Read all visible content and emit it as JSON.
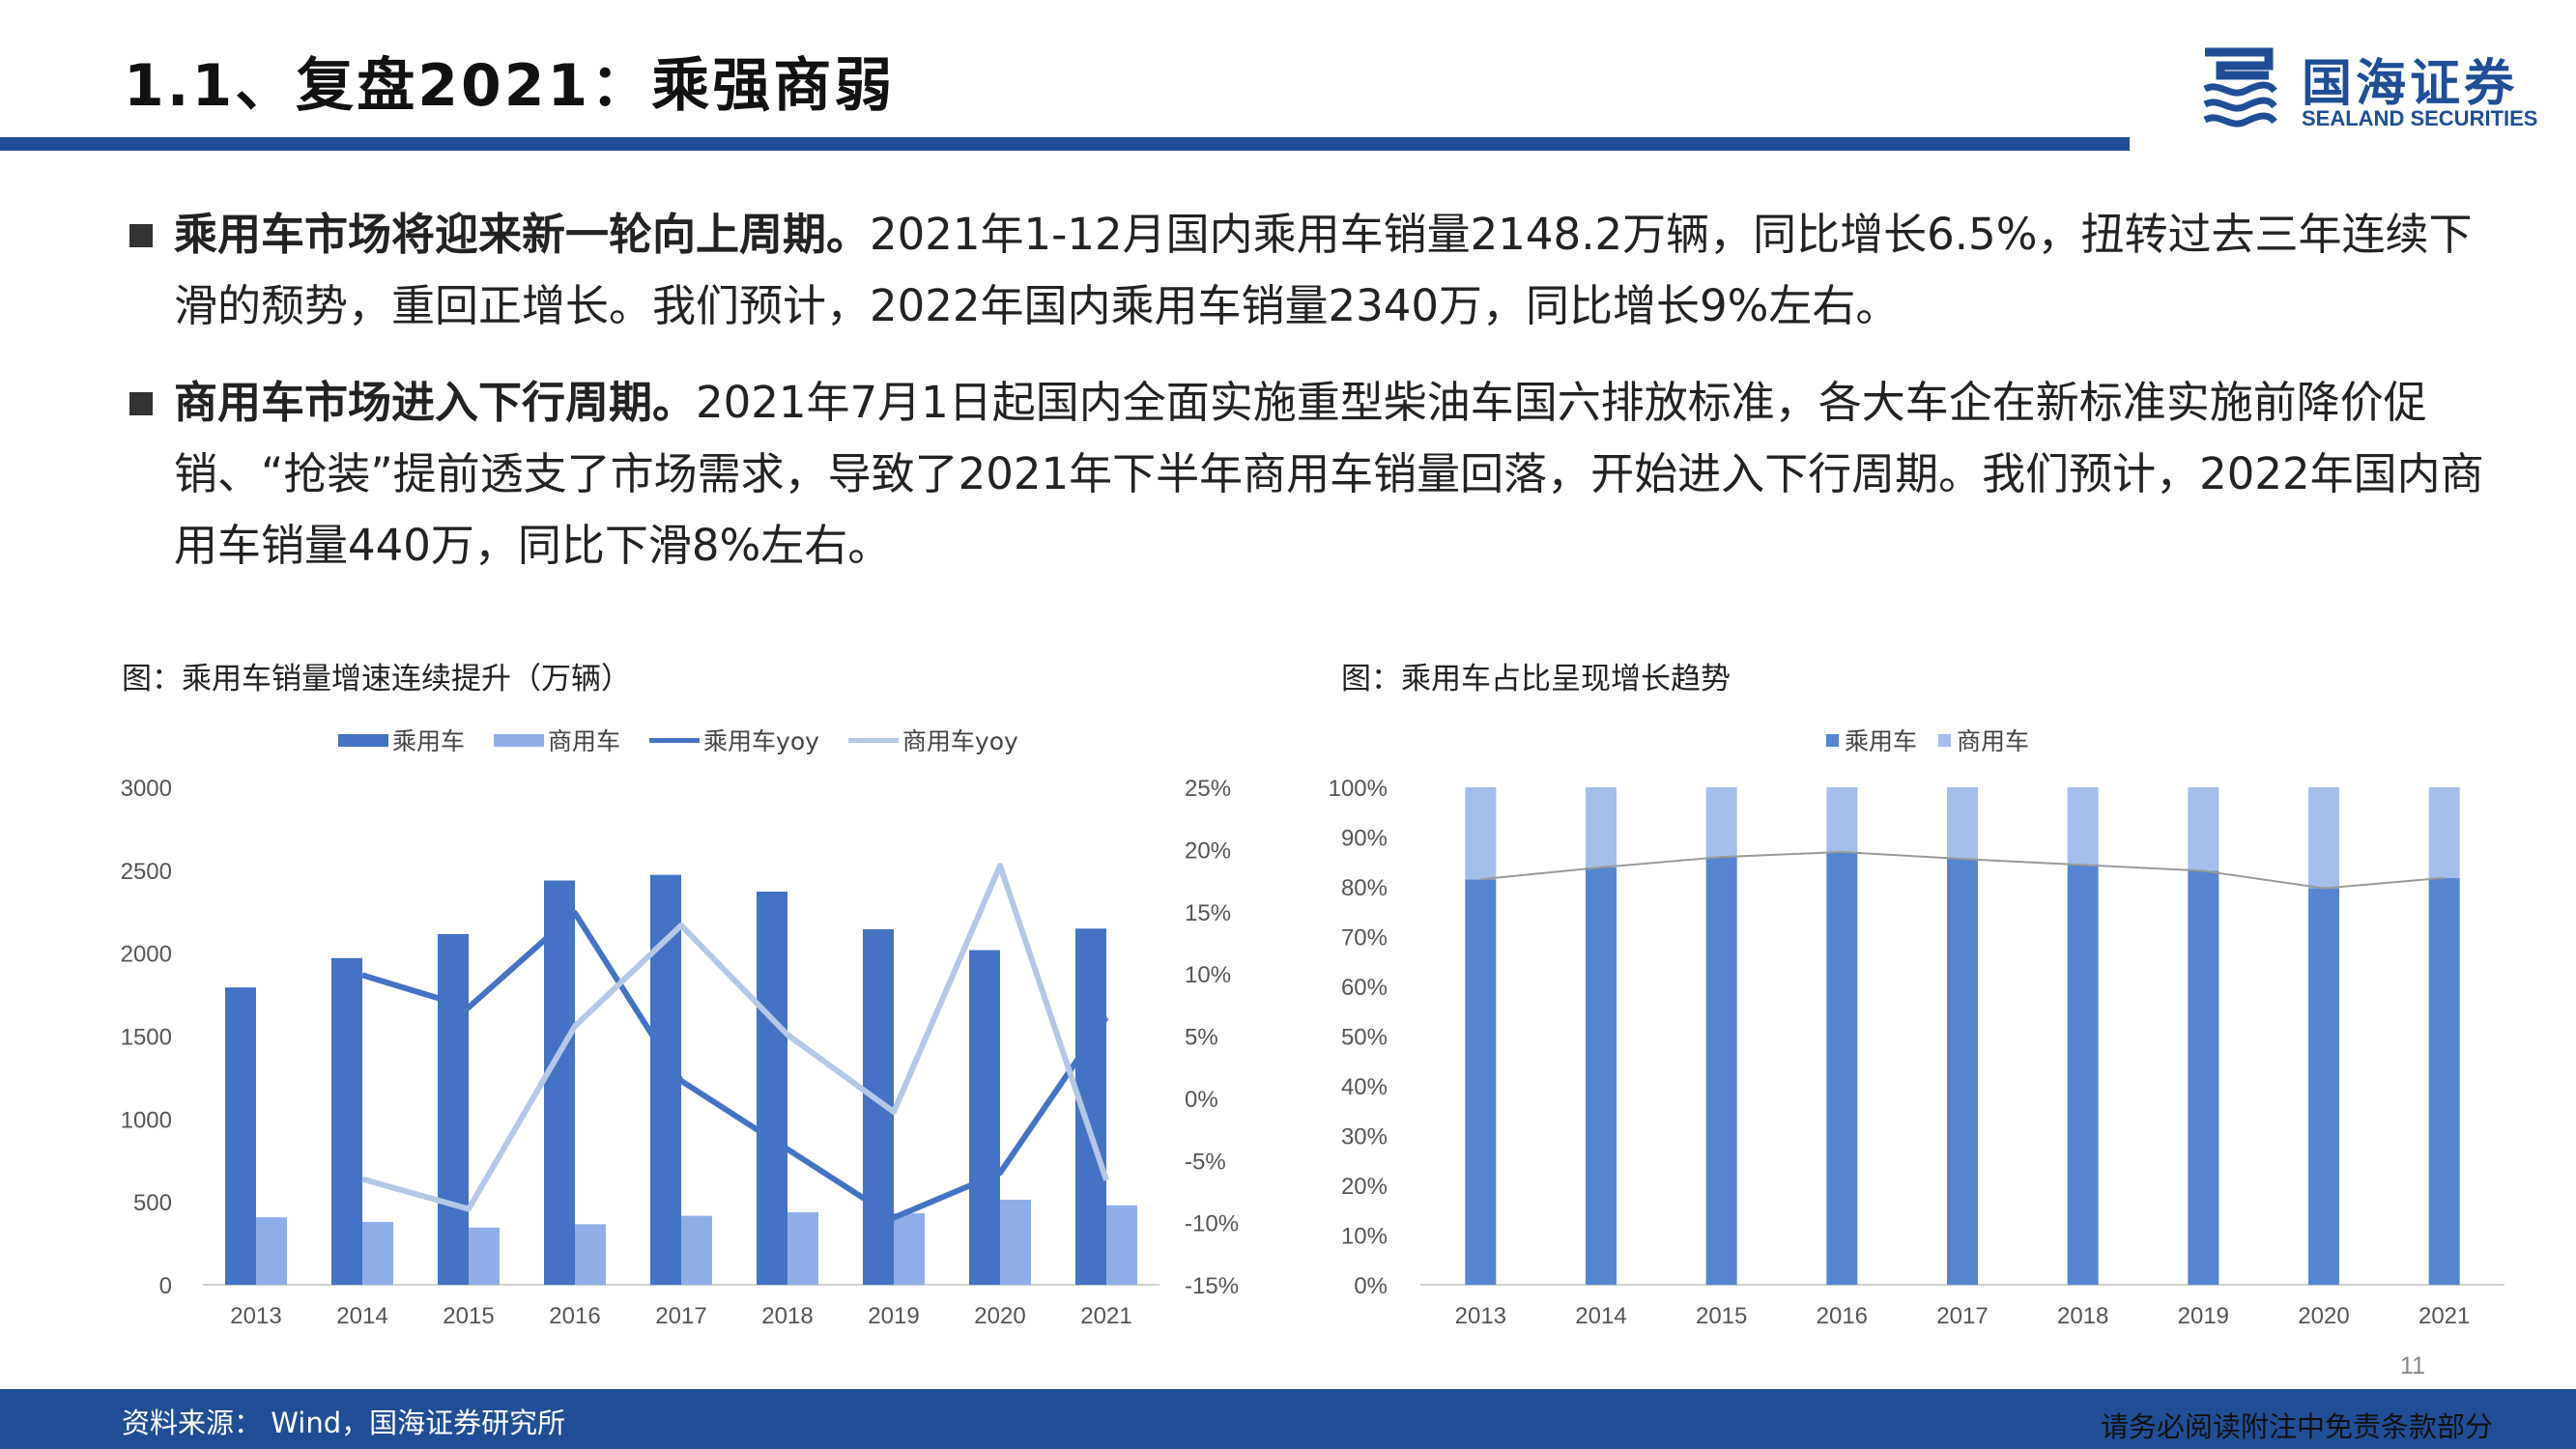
{
  "header": {
    "title": "1.1、复盘2021：乘强商弱",
    "logo_cn": "国海证券",
    "logo_en": "SEALAND SECURITIES"
  },
  "bullets": [
    {
      "bold": "乘用车市场将迎来新一轮向上周期。",
      "text": "2021年1-12月国内乘用车销量2148.2万辆，同比增长6.5%，扭转过去三年连续下滑的颓势，重回正增长。我们预计，2022年国内乘用车销量2340万，同比增长9%左右。"
    },
    {
      "bold": "商用车市场进入下行周期。",
      "text": "2021年7月1日起国内全面实施重型柴油车国六排放标准，各大车企在新标准实施前降价促销、“抢装”提前透支了市场需求，导致了2021年下半年商用车销量回落，开始进入下行周期。我们预计，2022年国内商用车销量440万，同比下滑8%左右。"
    }
  ],
  "chart_left": {
    "caption": "图：乘用车销量增速连续提升（万辆）",
    "legend": [
      "乘用车",
      "商用车",
      "乘用车yoy",
      "商用车yoy"
    ]
  },
  "chart_right": {
    "caption": "图：乘用车占比呈现增长趋势",
    "legend": [
      "乘用车",
      "商用车"
    ]
  },
  "chart_data": [
    {
      "type": "bar",
      "title": "图：乘用车销量增速连续提升（万辆）",
      "categories": [
        "2013",
        "2014",
        "2015",
        "2016",
        "2017",
        "2018",
        "2019",
        "2020",
        "2021"
      ],
      "series": [
        {
          "name": "乘用车",
          "kind": "bar",
          "axis": "left",
          "values": [
            1793,
            1970,
            2115,
            2438,
            2472,
            2371,
            2144,
            2018,
            2148
          ]
        },
        {
          "name": "商用车",
          "kind": "bar",
          "axis": "left",
          "values": [
            407,
            379,
            345,
            365,
            416,
            437,
            432,
            513,
            479
          ]
        },
        {
          "name": "乘用车yoy",
          "kind": "line",
          "axis": "right",
          "values": [
            null,
            9.9,
            7.3,
            14.9,
            1.4,
            -4.1,
            -9.6,
            -6.0,
            6.5
          ]
        },
        {
          "name": "商用车yoy",
          "kind": "line",
          "axis": "right",
          "values": [
            null,
            -6.5,
            -8.9,
            5.8,
            13.9,
            5.1,
            -1.1,
            18.7,
            -6.6
          ]
        }
      ],
      "ylim": [
        0,
        3000
      ],
      "yticks": [
        "3000",
        "2500",
        "2000",
        "1500",
        "1000",
        "500",
        "0"
      ],
      "y2lim": [
        -15,
        25
      ],
      "y2ticks": [
        "25%",
        "20%",
        "15%",
        "10%",
        "5%",
        "0%",
        "-5%",
        "-10%",
        "-15%"
      ],
      "colors": {
        "乘用车": "#4472c4",
        "商用车": "#8faee8",
        "乘用车yoy": "#4472c4",
        "商用车yoy": "#b4c7e7"
      },
      "legend_position": "top",
      "grid": false
    },
    {
      "type": "bar",
      "stacked": true,
      "title": "图：乘用车占比呈现增长趋势",
      "categories": [
        "2013",
        "2014",
        "2015",
        "2016",
        "2017",
        "2018",
        "2019",
        "2020",
        "2021"
      ],
      "series": [
        {
          "name": "乘用车",
          "values": [
            81.5,
            83.9,
            86.0,
            87.0,
            85.6,
            84.4,
            83.2,
            79.7,
            81.8
          ]
        },
        {
          "name": "商用车",
          "values": [
            18.5,
            16.1,
            14.0,
            13.0,
            14.4,
            15.6,
            16.8,
            20.3,
            18.2
          ]
        }
      ],
      "ylim": [
        0,
        100
      ],
      "yticks": [
        "100%",
        "90%",
        "80%",
        "70%",
        "60%",
        "50%",
        "40%",
        "30%",
        "20%",
        "10%",
        "0%"
      ],
      "colors": {
        "乘用车": "#5585d1",
        "商用车": "#a5bdeb",
        "connector": "#999999"
      },
      "legend_position": "top",
      "grid": false
    }
  ],
  "page_number": "11",
  "footer": {
    "source": "资料来源：  Wind，国海证券研究所",
    "disclaimer": "请务必阅读附注中免责条款部分"
  }
}
